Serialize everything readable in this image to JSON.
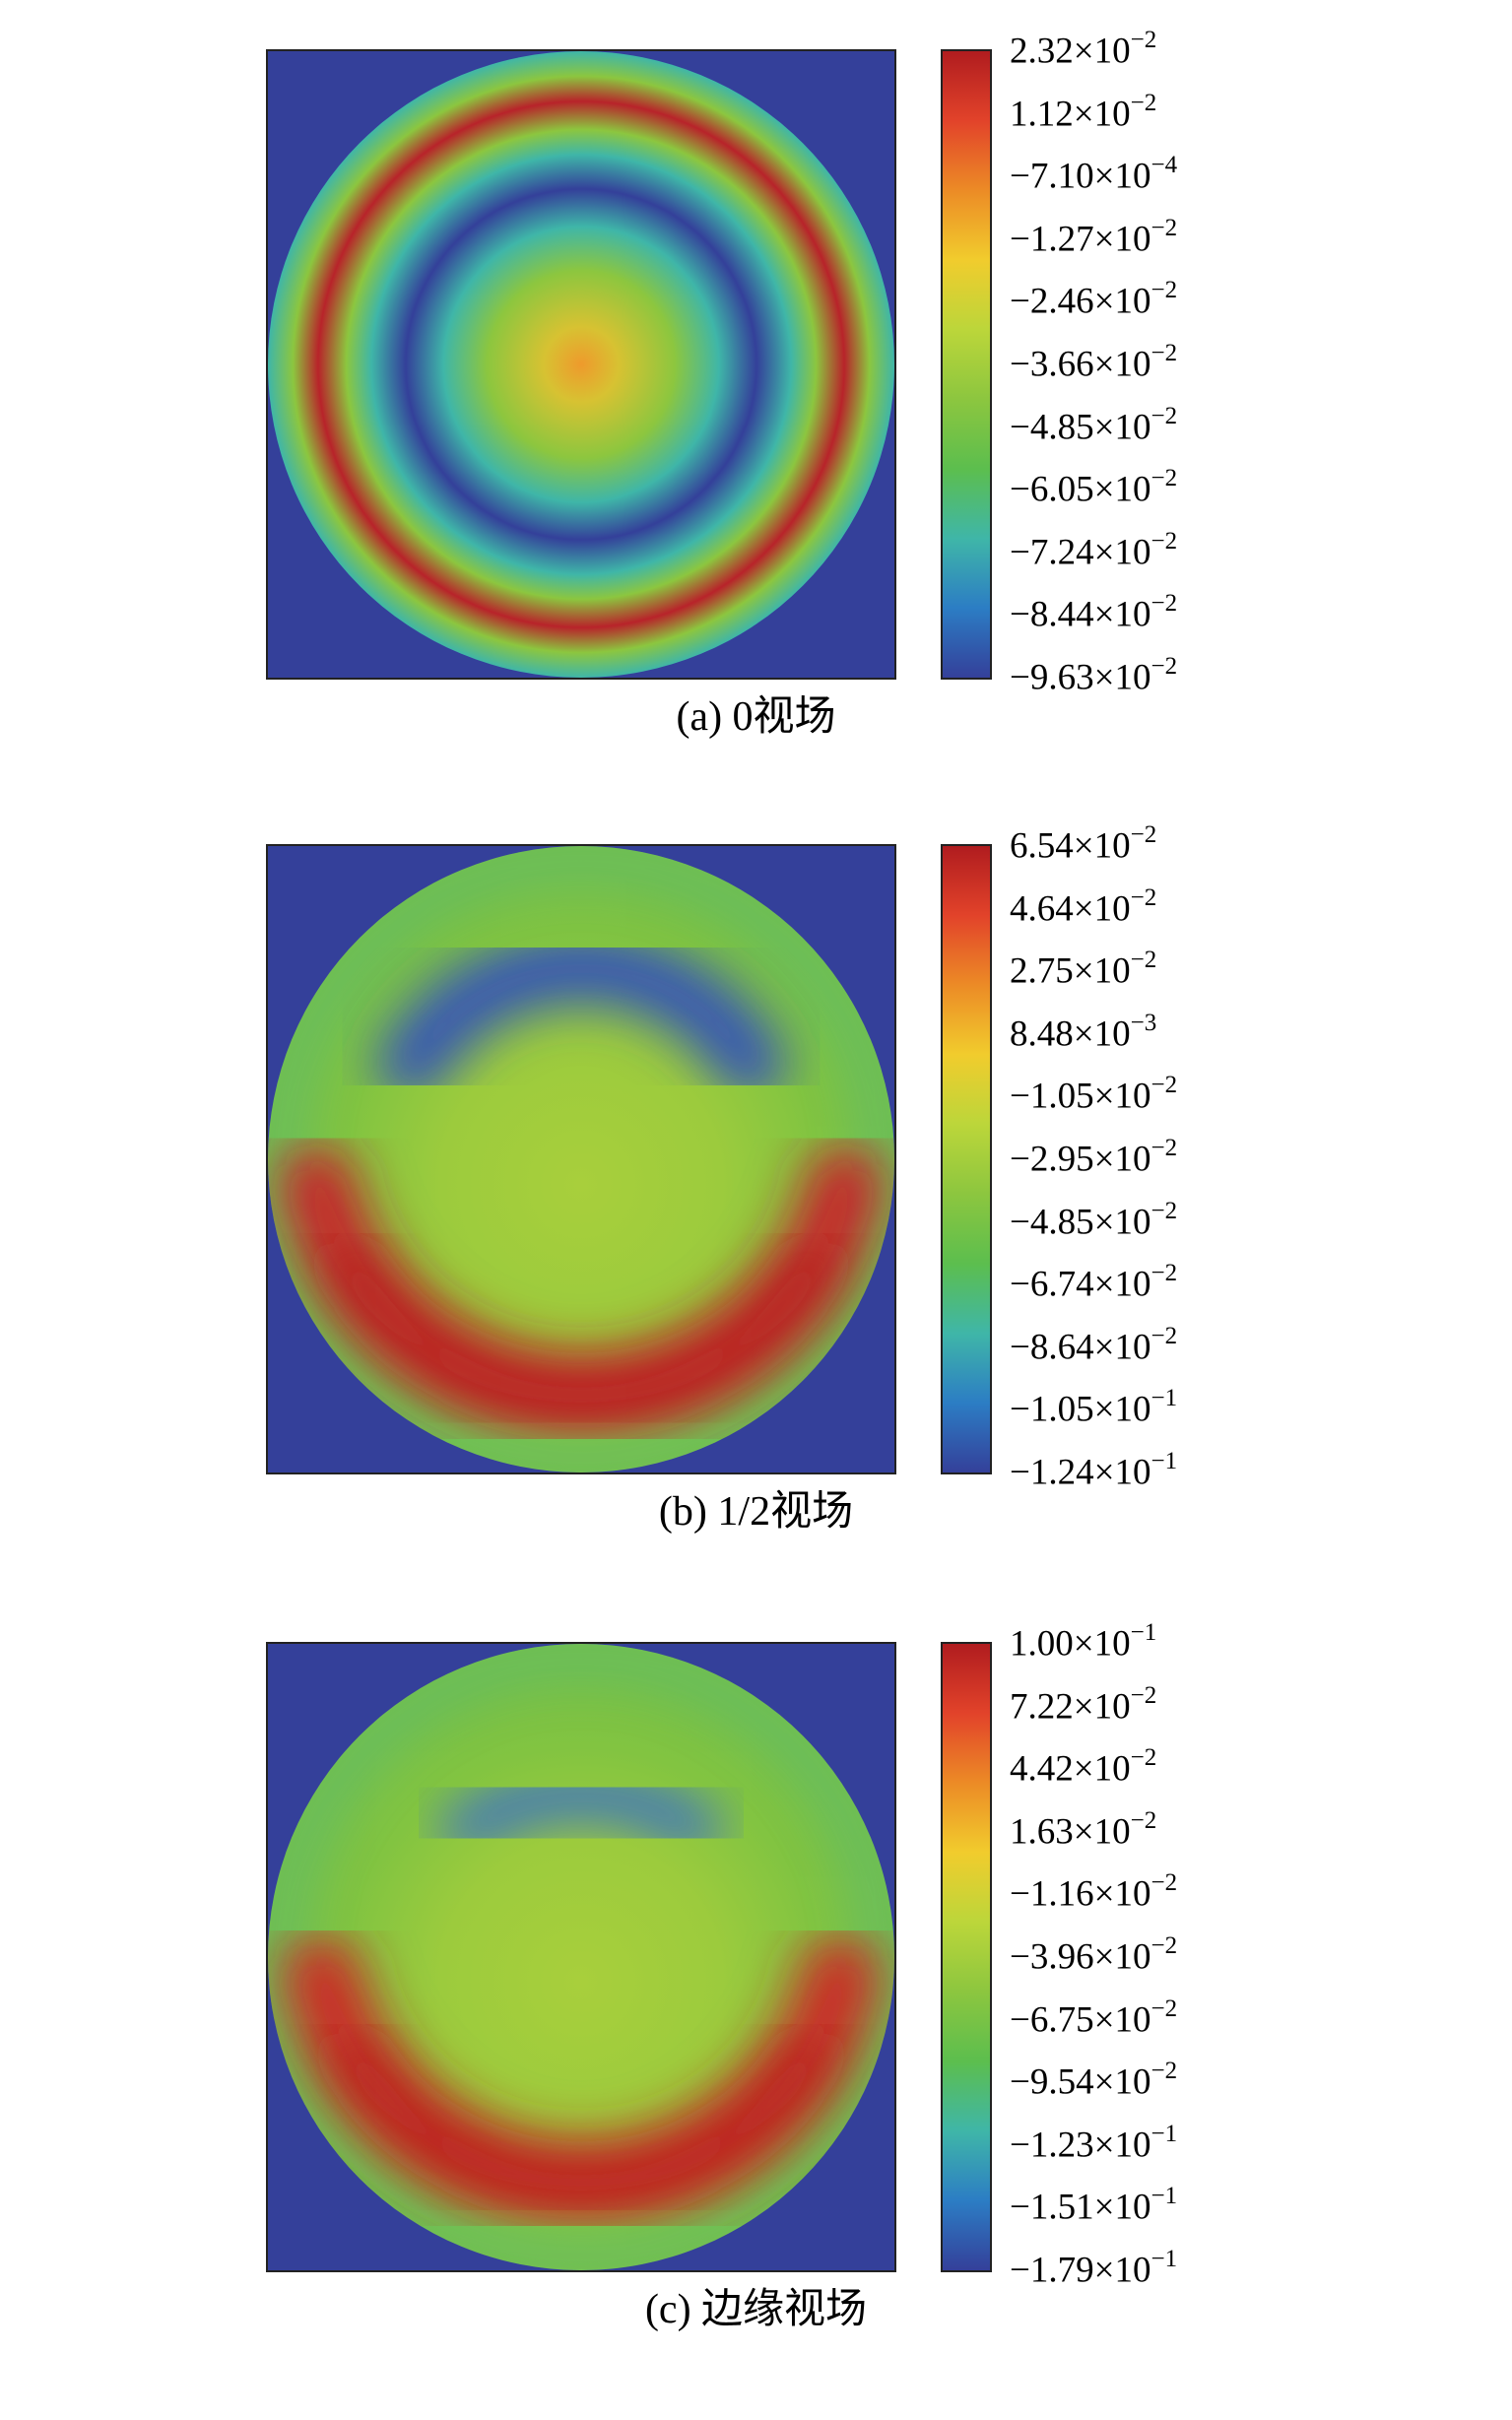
{
  "chart_data": [
    {
      "type": "heatmap",
      "caption": "(a) 0视场",
      "colorbar": {
        "ticks": [
          "2.32×10^-2",
          "1.12×10^-2",
          "−7.10×10^-4",
          "−1.27×10^-2",
          "−2.46×10^-2",
          "−3.66×10^-2",
          "−4.85×10^-2",
          "−6.05×10^-2",
          "−7.24×10^-2",
          "−8.44×10^-2",
          "−9.63×10^-2"
        ],
        "range": [
          -0.0963,
          0.0232
        ]
      },
      "colormap": [
        "#34409a",
        "#2c7dc4",
        "#3fb6a8",
        "#5cbe4e",
        "#8cc63f",
        "#bcd63a",
        "#f1cc2d",
        "#ec8b26",
        "#e2432a",
        "#b01c1f"
      ],
      "pattern": "concentric rings: orange-yellow center, green, blue ring, green, red ring, green edge",
      "rings": [
        {
          "r": 0.0,
          "color": "#ee9a2c"
        },
        {
          "r": 0.12,
          "color": "#d7c232"
        },
        {
          "r": 0.3,
          "color": "#8cc63f"
        },
        {
          "r": 0.44,
          "color": "#3fb6a8"
        },
        {
          "r": 0.56,
          "color": "#34409a"
        },
        {
          "r": 0.67,
          "color": "#3fb6a8"
        },
        {
          "r": 0.75,
          "color": "#8cc63f"
        },
        {
          "r": 0.84,
          "color": "#b8232a"
        },
        {
          "r": 0.92,
          "color": "#8cc63f"
        },
        {
          "r": 1.0,
          "color": "#3fb6a8"
        }
      ]
    },
    {
      "type": "heatmap",
      "caption": "(b) 1/2视场",
      "colorbar": {
        "ticks": [
          "6.54×10^-2",
          "4.64×10^-2",
          "2.75×10^-2",
          "8.48×10^-3",
          "−1.05×10^-2",
          "−2.95×10^-2",
          "−4.85×10^-2",
          "−6.74×10^-2",
          "−8.64×10^-2",
          "−1.05×10^-1",
          "−1.24×10^-1"
        ],
        "range": [
          -0.124,
          0.0654
        ]
      },
      "colormap": [
        "#34409a",
        "#2c7dc4",
        "#3fb6a8",
        "#5cbe4e",
        "#8cc63f",
        "#bcd63a",
        "#f1cc2d",
        "#ec8b26",
        "#e2432a",
        "#b01c1f"
      ],
      "pattern": "green disk, blue arc in upper half, red arc in lower half",
      "upper_arc_color": "#3553b8",
      "lower_arc_color": "#c8242a"
    },
    {
      "type": "heatmap",
      "caption": "(c) 边缘视场",
      "colorbar": {
        "ticks": [
          "1.00×10^-1",
          "7.22×10^-2",
          "4.42×10^-2",
          "1.63×10^-2",
          "−1.16×10^-2",
          "−3.96×10^-2",
          "−6.75×10^-2",
          "−9.54×10^-2",
          "−1.23×10^-1",
          "−1.51×10^-1",
          "−1.79×10^-1"
        ],
        "range": [
          -0.179,
          0.1
        ]
      },
      "colormap": [
        "#34409a",
        "#2c7dc4",
        "#3fb6a8",
        "#5cbe4e",
        "#8cc63f",
        "#bcd63a",
        "#f1cc2d",
        "#ec8b26",
        "#e2432a",
        "#b01c1f"
      ],
      "pattern": "green disk, faint blue arc near top, red arc in lower half",
      "upper_arc_color": "#3c72c2",
      "lower_arc_color": "#cc2a28"
    }
  ]
}
